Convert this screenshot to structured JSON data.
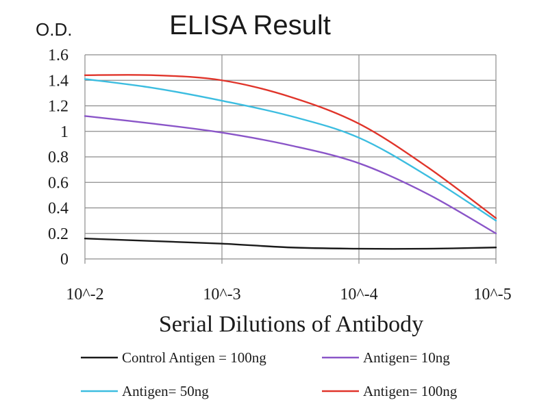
{
  "chart_data": {
    "type": "line",
    "title": "ELISA Result",
    "ylabel": "O.D.",
    "xlabel": "Serial Dilutions of Antibody",
    "x_categories": [
      "10^-2",
      "10^-3",
      "10^-4",
      "10^-5"
    ],
    "ylim": [
      0,
      1.6
    ],
    "yticks": [
      "0",
      "0.2",
      "0.4",
      "0.6",
      "0.8",
      "1",
      "1.2",
      "1.4",
      "1.6"
    ],
    "grid": true,
    "legend_position": "bottom",
    "series": [
      {
        "name": "Control Antigen = 100ng",
        "color": "#1a1a1a",
        "points": [
          [
            0,
            0.16
          ],
          [
            0.5,
            0.14
          ],
          [
            1,
            0.12
          ],
          [
            1.5,
            0.09
          ],
          [
            2,
            0.08
          ],
          [
            2.5,
            0.08
          ],
          [
            3,
            0.09
          ]
        ]
      },
      {
        "name": "Antigen= 10ng",
        "color": "#8a55c8",
        "points": [
          [
            0,
            1.12
          ],
          [
            0.5,
            1.06
          ],
          [
            1,
            0.99
          ],
          [
            1.5,
            0.89
          ],
          [
            2,
            0.75
          ],
          [
            2.5,
            0.51
          ],
          [
            3,
            0.2
          ]
        ]
      },
      {
        "name": "Antigen= 50ng",
        "color": "#3cbde0",
        "points": [
          [
            0,
            1.41
          ],
          [
            0.5,
            1.34
          ],
          [
            1,
            1.24
          ],
          [
            1.5,
            1.12
          ],
          [
            2,
            0.95
          ],
          [
            2.5,
            0.65
          ],
          [
            3,
            0.3
          ]
        ]
      },
      {
        "name": "Antigen= 100ng",
        "color": "#e0342a",
        "points": [
          [
            0,
            1.44
          ],
          [
            0.5,
            1.44
          ],
          [
            1,
            1.4
          ],
          [
            1.5,
            1.27
          ],
          [
            2,
            1.06
          ],
          [
            2.5,
            0.72
          ],
          [
            3,
            0.32
          ]
        ]
      }
    ]
  }
}
